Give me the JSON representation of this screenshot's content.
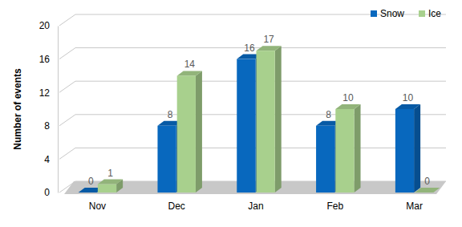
{
  "chart_data": {
    "type": "bar",
    "y_label": "Number of events",
    "categories": [
      "Nov",
      "Dec",
      "Jan",
      "Feb",
      "Mar"
    ],
    "series": [
      {
        "name": "Snow",
        "color": "#0868be",
        "values": [
          0,
          8,
          16,
          8,
          10
        ]
      },
      {
        "name": "Ice",
        "color": "#a8d08d",
        "values": [
          1,
          14,
          17,
          10,
          0
        ]
      }
    ],
    "ylim": [
      0,
      20
    ],
    "yticks": [
      0,
      4,
      8,
      12,
      16,
      20
    ],
    "grid": true,
    "legend": "top-right",
    "data_labels": true
  }
}
